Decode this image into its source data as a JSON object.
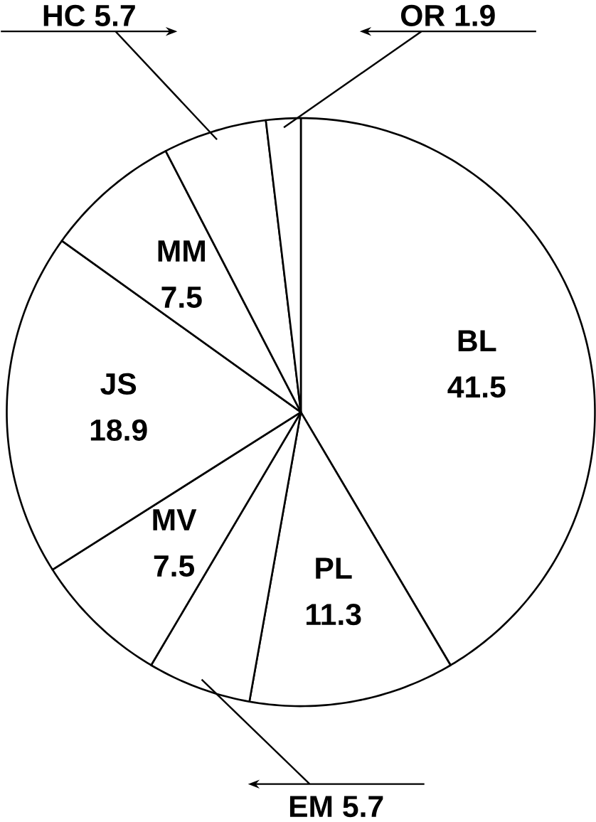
{
  "chart_data": {
    "type": "pie",
    "categories": [
      "BL",
      "PL",
      "EM",
      "MV",
      "JS",
      "MM",
      "HC",
      "OR"
    ],
    "values": [
      41.5,
      11.3,
      5.7,
      7.5,
      18.9,
      7.5,
      5.7,
      1.9
    ],
    "colors": [
      "#ffffff",
      "#ffffff",
      "#ffffff",
      "#ffffff",
      "#ffffff",
      "#ffffff",
      "#ffffff",
      "#ffffff"
    ],
    "data_labels": true
  }
}
